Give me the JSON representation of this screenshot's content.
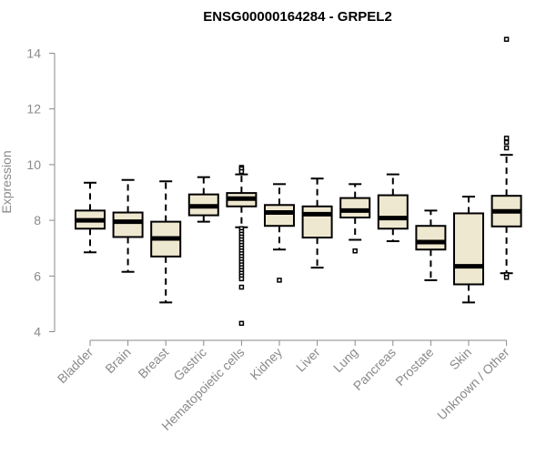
{
  "chart_data": {
    "type": "boxplot",
    "title": "ENSG00000164284 - GRPEL2",
    "xlabel": "",
    "ylabel": "Expression",
    "ylim": [
      4,
      14.5
    ],
    "yticks": [
      4,
      6,
      8,
      10,
      12,
      14
    ],
    "grid": false,
    "box_fill": "#efe8d0",
    "categories": [
      "Bladder",
      "Brain",
      "Breast",
      "Gastric",
      "Hematopoietic cells",
      "Kidney",
      "Liver",
      "Lung",
      "Pancreas",
      "Prostate",
      "Skin",
      "Unknown / Other"
    ],
    "boxes": [
      {
        "whisker_low": 6.85,
        "q1": 7.7,
        "median": 8.0,
        "q3": 8.35,
        "whisker_high": 9.35,
        "outliers": []
      },
      {
        "whisker_low": 6.15,
        "q1": 7.4,
        "median": 7.95,
        "q3": 8.28,
        "whisker_high": 9.45,
        "outliers": []
      },
      {
        "whisker_low": 5.05,
        "q1": 6.7,
        "median": 7.35,
        "q3": 7.95,
        "whisker_high": 9.4,
        "outliers": []
      },
      {
        "whisker_low": 7.95,
        "q1": 8.18,
        "median": 8.5,
        "q3": 8.93,
        "whisker_high": 9.55,
        "outliers": []
      },
      {
        "whisker_low": 7.75,
        "q1": 8.5,
        "median": 8.78,
        "q3": 8.98,
        "whisker_high": 9.65,
        "outliers": [
          9.9,
          9.85,
          9.75,
          7.7,
          7.6,
          7.5,
          7.4,
          7.3,
          7.2,
          7.1,
          7.0,
          6.9,
          6.8,
          6.7,
          6.6,
          6.5,
          6.4,
          6.3,
          6.2,
          6.1,
          6.0,
          5.9,
          5.6,
          4.3
        ]
      },
      {
        "whisker_low": 6.95,
        "q1": 7.8,
        "median": 8.28,
        "q3": 8.55,
        "whisker_high": 9.3,
        "outliers": [
          5.85
        ]
      },
      {
        "whisker_low": 6.3,
        "q1": 7.38,
        "median": 8.22,
        "q3": 8.5,
        "whisker_high": 9.5,
        "outliers": []
      },
      {
        "whisker_low": 7.3,
        "q1": 8.1,
        "median": 8.35,
        "q3": 8.8,
        "whisker_high": 9.3,
        "outliers": [
          6.9
        ]
      },
      {
        "whisker_low": 7.25,
        "q1": 7.7,
        "median": 8.08,
        "q3": 8.9,
        "whisker_high": 9.65,
        "outliers": []
      },
      {
        "whisker_low": 5.85,
        "q1": 6.95,
        "median": 7.22,
        "q3": 7.8,
        "whisker_high": 8.35,
        "outliers": []
      },
      {
        "whisker_low": 5.05,
        "q1": 5.7,
        "median": 6.35,
        "q3": 8.25,
        "whisker_high": 8.85,
        "outliers": []
      },
      {
        "whisker_low": 6.1,
        "q1": 7.78,
        "median": 8.32,
        "q3": 8.88,
        "whisker_high": 10.35,
        "outliers": [
          14.5,
          10.95,
          10.8,
          10.6,
          6.05,
          5.95
        ]
      }
    ]
  }
}
